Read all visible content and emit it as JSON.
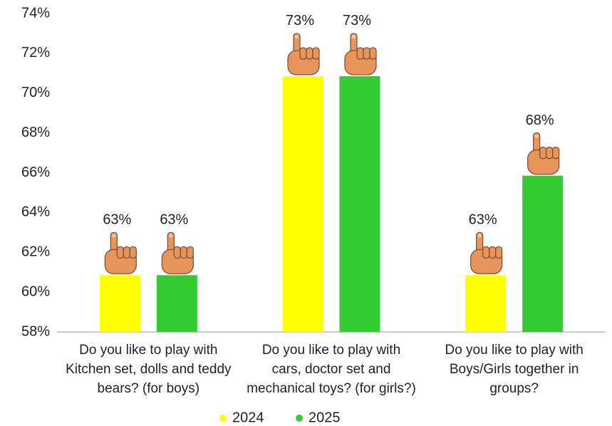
{
  "chart_data": {
    "type": "bar",
    "categories": [
      "Do you like to play with Kitchen set, dolls and teddy bears? (for boys)",
      "Do you like to play with cars, doctor set and mechanical toys? (for girls?)",
      "Do you like to play with Boys/Girls together in groups?"
    ],
    "series": [
      {
        "name": "2024",
        "color": "#ffff00",
        "values": [
          63,
          73,
          63
        ],
        "value_labels": [
          "63%",
          "73%",
          "63%"
        ]
      },
      {
        "name": "2025",
        "color": "#33cc33",
        "values": [
          63,
          73,
          68
        ],
        "value_labels": [
          "63%",
          "73%",
          "68%"
        ]
      }
    ],
    "ylim": [
      58,
      74
    ],
    "yticks": [
      {
        "value": 58,
        "label": "58%"
      },
      {
        "value": 60,
        "label": "60%"
      },
      {
        "value": 62,
        "label": "62%"
      },
      {
        "value": 64,
        "label": "64%"
      },
      {
        "value": 66,
        "label": "66%"
      },
      {
        "value": 68,
        "label": "68%"
      },
      {
        "value": 70,
        "label": "70%"
      },
      {
        "value": 72,
        "label": "72%"
      },
      {
        "value": 74,
        "label": "74%"
      }
    ],
    "legend": "bottom"
  }
}
